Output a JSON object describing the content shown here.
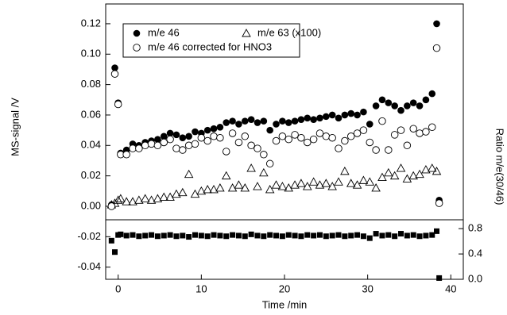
{
  "chart_data": {
    "type": "scatter",
    "xlabel": "Time /min",
    "ylabel": "MS-signal /V",
    "y2label": "Ratio m/e(30/46)",
    "xlim": [
      -1.5,
      41.5
    ],
    "xticks": [
      0,
      10,
      20,
      30,
      40
    ],
    "ylim": [
      -0.048,
      0.133
    ],
    "yticks": [
      {
        "value": -0.04,
        "label": "-0.04"
      },
      {
        "value": -0.02,
        "label": "-0.02"
      },
      {
        "value": 0,
        "label": "0.00"
      },
      {
        "value": 0.02,
        "label": "0.02"
      },
      {
        "value": 0.04,
        "label": "0.04"
      },
      {
        "value": 0.06,
        "label": "0.06"
      },
      {
        "value": 0.08,
        "label": "0.08"
      },
      {
        "value": 0.1,
        "label": "0.10"
      },
      {
        "value": 0.12,
        "label": "0.12"
      }
    ],
    "y2lim": [
      0,
      0.94
    ],
    "y2ticks": [
      {
        "value": 0,
        "label": "0.0"
      },
      {
        "value": 0.4,
        "label": "0.4"
      },
      {
        "value": 0.8,
        "label": "0.8"
      }
    ],
    "legend": "upper left",
    "x": [
      -0.8,
      -0.4,
      0,
      0.3,
      1.0,
      1.75,
      2.5,
      3.25,
      4.0,
      4.75,
      5.5,
      6.25,
      7.0,
      7.75,
      8.5,
      9.25,
      10.0,
      10.75,
      11.5,
      12.25,
      13.0,
      13.75,
      14.5,
      15.25,
      16.0,
      16.75,
      17.5,
      18.25,
      19.0,
      19.75,
      20.5,
      21.25,
      22.0,
      22.75,
      23.5,
      24.25,
      25.0,
      25.75,
      26.5,
      27.25,
      28.0,
      28.75,
      29.5,
      30.25,
      31.0,
      31.75,
      32.5,
      33.25,
      34.0,
      34.75,
      35.5,
      36.25,
      37.0,
      37.75,
      38.3,
      38.6
    ],
    "series": [
      {
        "name": "m/e 46",
        "marker": "filled-circle",
        "color": "#000000",
        "values": [
          0.001,
          0.091,
          0.068,
          0.035,
          0.037,
          0.041,
          0.04,
          0.042,
          0.043,
          0.044,
          0.046,
          0.048,
          0.047,
          0.045,
          0.046,
          0.049,
          0.048,
          0.05,
          0.051,
          0.052,
          0.055,
          0.056,
          0.054,
          0.056,
          0.057,
          0.055,
          0.056,
          0.05,
          0.054,
          0.056,
          0.055,
          0.056,
          0.057,
          0.058,
          0.057,
          0.058,
          0.059,
          0.06,
          0.058,
          0.06,
          0.061,
          0.06,
          0.062,
          0.054,
          0.066,
          0.07,
          0.068,
          0.066,
          0.063,
          0.066,
          0.068,
          0.066,
          0.07,
          0.074,
          0.12,
          0.004
        ]
      },
      {
        "name": "m/e 63 (x100)",
        "marker": "open-triangle",
        "color": "#000000",
        "values": [
          0.001,
          0.002,
          0.004,
          0.005,
          0.003,
          0.003,
          0.004,
          0.005,
          0.004,
          0.005,
          0.006,
          0.006,
          0.008,
          0.009,
          0.021,
          0.008,
          0.01,
          0.011,
          0.011,
          0.012,
          0.02,
          0.012,
          0.014,
          0.012,
          0.025,
          0.013,
          0.022,
          0.011,
          0.014,
          0.013,
          0.012,
          0.014,
          0.015,
          0.013,
          0.016,
          0.014,
          0.015,
          0.013,
          0.016,
          0.023,
          0.015,
          0.014,
          0.017,
          0.016,
          0.012,
          0.019,
          0.022,
          0.02,
          0.025,
          0.018,
          0.02,
          0.021,
          0.024,
          0.025,
          0.023,
          null
        ]
      },
      {
        "name": "m/e 46 corrected for HNO3",
        "marker": "open-circle",
        "color": "#000000",
        "values": [
          0.0,
          0.087,
          0.067,
          0.034,
          0.034,
          0.038,
          0.038,
          0.04,
          0.041,
          0.04,
          0.042,
          0.044,
          0.038,
          0.037,
          0.04,
          0.041,
          0.045,
          0.043,
          0.046,
          0.045,
          0.036,
          0.048,
          0.042,
          0.046,
          0.04,
          0.038,
          0.034,
          0.028,
          0.043,
          0.046,
          0.044,
          0.047,
          0.045,
          0.042,
          0.044,
          0.048,
          0.046,
          0.045,
          0.038,
          0.043,
          0.046,
          0.048,
          0.05,
          0.042,
          0.037,
          0.056,
          0.037,
          0.047,
          0.05,
          0.04,
          0.051,
          0.048,
          0.049,
          0.052,
          0.104,
          0.002
        ]
      },
      {
        "name": "Ratio m/e(30/46)",
        "marker": "filled-square",
        "color": "#000000",
        "axis": "y2",
        "in_legend": false,
        "values": [
          0.61,
          0.43,
          0.7,
          0.71,
          0.69,
          0.7,
          0.68,
          0.69,
          0.7,
          0.68,
          0.69,
          0.7,
          0.68,
          0.69,
          0.67,
          0.7,
          0.69,
          0.68,
          0.7,
          0.69,
          0.68,
          0.7,
          0.69,
          0.68,
          0.71,
          0.69,
          0.68,
          0.7,
          0.69,
          0.68,
          0.7,
          0.69,
          0.68,
          0.7,
          0.69,
          0.7,
          0.68,
          0.69,
          0.7,
          0.68,
          0.69,
          0.7,
          0.68,
          0.65,
          0.72,
          0.69,
          0.7,
          0.68,
          0.72,
          0.69,
          0.7,
          0.68,
          0.69,
          0.7,
          0.76,
          0.02
        ]
      }
    ]
  }
}
